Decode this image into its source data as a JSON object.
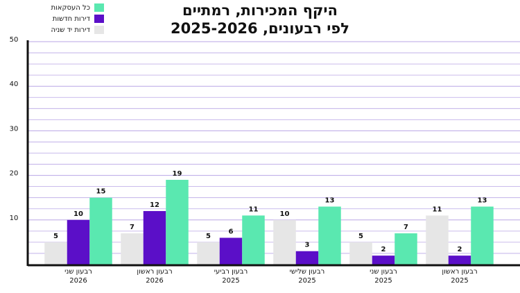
{
  "chart_data": {
    "type": "bar",
    "title": [
      "היקף המכירות, רמתיים",
      "לפי רבעונים, 2025-2026"
    ],
    "categories": [
      [
        "רבעון שני",
        "2026"
      ],
      [
        "רבעון ראשון",
        "2026"
      ],
      [
        "רבעון רביעי",
        "2025"
      ],
      [
        "רבעון שלישי",
        "2025"
      ],
      [
        "רבעון שני",
        "2025"
      ],
      [
        "רבעון ראשון",
        "2025"
      ]
    ],
    "series": [
      {
        "name": "דירות יד שניה",
        "color": "#e6e6e6",
        "values": [
          5,
          7,
          5,
          10,
          5,
          11
        ]
      },
      {
        "name": "דירות חדשות",
        "color": "#5b0fc8",
        "values": [
          10,
          12,
          6,
          3,
          2,
          2
        ]
      },
      {
        "name": "כל העסקאות",
        "color": "#5ae8b0",
        "values": [
          15,
          19,
          11,
          13,
          7,
          13
        ]
      }
    ],
    "legend_order": [
      2,
      1,
      0
    ],
    "ylim": [
      0,
      50
    ],
    "yticks": [
      10,
      20,
      30,
      40,
      50
    ],
    "yminor": [
      2.5,
      5,
      7.5,
      12.5,
      15,
      17.5,
      22.5,
      25,
      27.5,
      32.5,
      35,
      37.5,
      42.5,
      45,
      47.5
    ],
    "grid": true,
    "grid_color": "#b9a6e6"
  }
}
